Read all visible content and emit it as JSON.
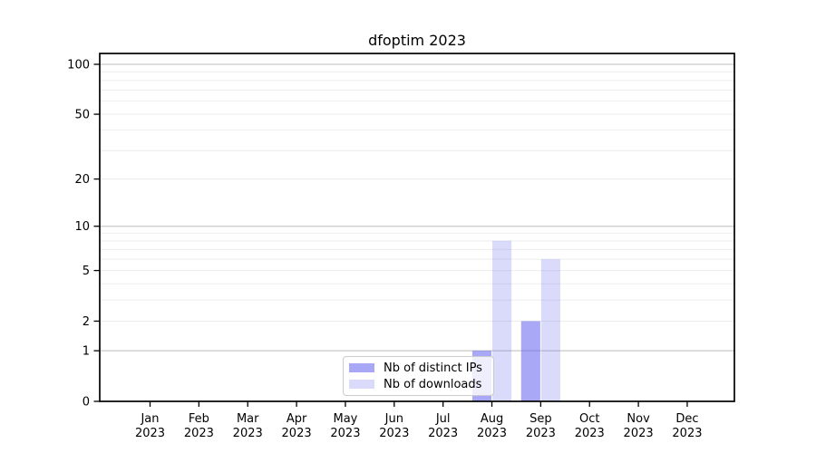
{
  "chart_data": {
    "type": "bar",
    "title": "dfoptim 2023",
    "categories": [
      "Jan",
      "Feb",
      "Mar",
      "Apr",
      "May",
      "Jun",
      "Jul",
      "Aug",
      "Sep",
      "Oct",
      "Nov",
      "Dec"
    ],
    "category_year": "2023",
    "series": [
      {
        "name": "Nb of distinct IPs",
        "values": [
          0,
          0,
          0,
          0,
          0,
          0,
          0,
          1,
          2,
          0,
          0,
          0
        ],
        "color": "rgba(102,102,240,0.57)"
      },
      {
        "name": "Nb of downloads",
        "values": [
          0,
          0,
          0,
          0,
          0,
          0,
          0,
          8,
          6,
          0,
          0,
          0
        ],
        "color": "rgba(102,102,240,0.24)"
      }
    ],
    "yscale": "log1p",
    "ylim": [
      0,
      116
    ],
    "yticks": [
      0,
      1,
      2,
      5,
      10,
      20,
      50,
      100
    ],
    "grid": {
      "major_values": [
        1,
        10,
        100
      ],
      "major_color": "#c9c9c9",
      "minor_values": [
        2,
        3,
        4,
        5,
        6,
        7,
        8,
        9,
        20,
        30,
        40,
        50,
        60,
        70,
        80,
        90
      ],
      "minor_color": "#ededed"
    },
    "legend": {
      "position": "lower center"
    },
    "axis_color": "#000000",
    "text_color": "#000000"
  }
}
